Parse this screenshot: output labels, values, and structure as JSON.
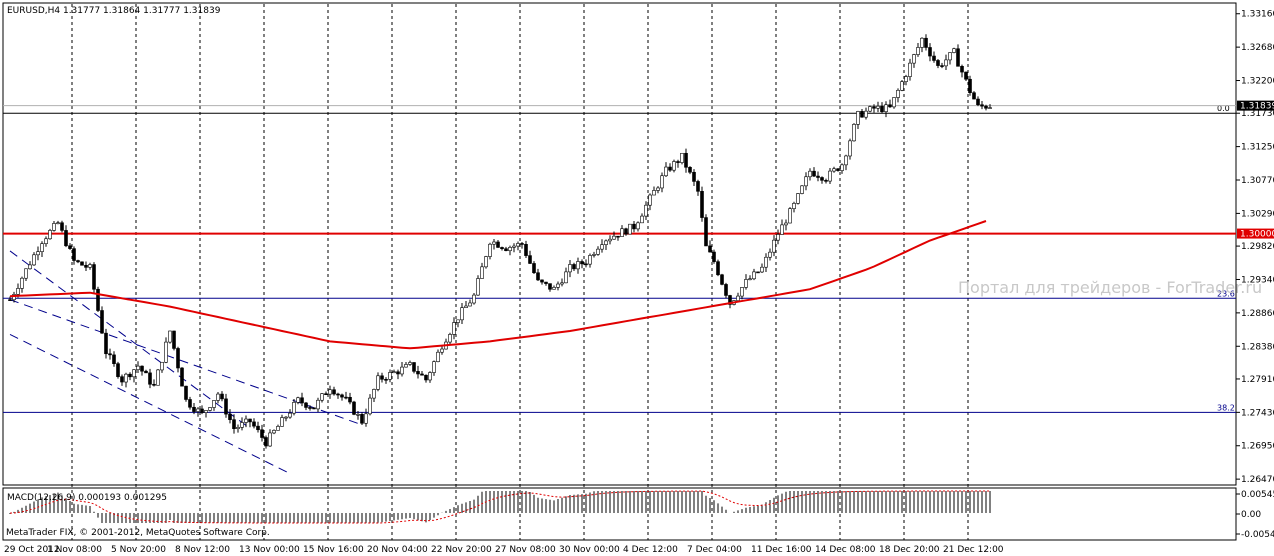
{
  "chart_data": {
    "type": "candlestick",
    "symbol_header": "EURUSD,H4  1.31777 1.31864 1.31777 1.31839",
    "price_axis": {
      "ticks": [
        "1.33160",
        "1.32680",
        "1.32200",
        "1.31730",
        "1.31250",
        "1.30770",
        "1.30290",
        "1.29820",
        "1.29340",
        "1.28860",
        "1.28380",
        "1.27910",
        "1.27430",
        "1.26950",
        "1.26470"
      ],
      "tick_values": [
        1.3316,
        1.3268,
        1.322,
        1.3173,
        1.3125,
        1.3077,
        1.3029,
        1.2982,
        1.2934,
        1.2886,
        1.2838,
        1.2791,
        1.2743,
        1.2695,
        1.2647
      ],
      "range": [
        1.264,
        1.333
      ]
    },
    "time_axis": {
      "labels": [
        "29 Oct 2012",
        "1 Nov 08:00",
        "5 Nov 20:00",
        "8 Nov 12:00",
        "13 Nov 00:00",
        "15 Nov 16:00",
        "20 Nov 04:00",
        "22 Nov 20:00",
        "27 Nov 08:00",
        "30 Nov 00:00",
        "4 Dec 12:00",
        "7 Dec 04:00",
        "11 Dec 16:00",
        "14 Dec 08:00",
        "18 Dec 20:00",
        "21 Dec 12:00"
      ],
      "bars_between_labels": 16,
      "total_bars": 245
    },
    "current_price": "1.31839",
    "current_price_value": 1.31839,
    "levels": [
      {
        "name": "1.30000",
        "value": 1.3,
        "color": "#e00000",
        "label": "1.30000",
        "kind": "support"
      },
      {
        "name": "fib-0.0",
        "value": 1.3173,
        "color": "#000000",
        "label": "0.0"
      },
      {
        "name": "fib-23.6",
        "value": 1.2907,
        "color": "#00008b",
        "label": "23.6"
      },
      {
        "name": "fib-38.2",
        "value": 1.2743,
        "color": "#00008b",
        "label": "38.2"
      }
    ],
    "price_path": [
      [
        0,
        1.2905
      ],
      [
        8,
        1.299
      ],
      [
        12,
        1.3015
      ],
      [
        16,
        1.296
      ],
      [
        20,
        1.295
      ],
      [
        24,
        1.283
      ],
      [
        28,
        1.279
      ],
      [
        32,
        1.281
      ],
      [
        36,
        1.278
      ],
      [
        40,
        1.286
      ],
      [
        44,
        1.276
      ],
      [
        48,
        1.274
      ],
      [
        52,
        1.277
      ],
      [
        56,
        1.272
      ],
      [
        60,
        1.273
      ],
      [
        64,
        1.27
      ],
      [
        68,
        1.273
      ],
      [
        72,
        1.276
      ],
      [
        76,
        1.275
      ],
      [
        80,
        1.278
      ],
      [
        84,
        1.276
      ],
      [
        88,
        1.273
      ],
      [
        92,
        1.279
      ],
      [
        96,
        1.28
      ],
      [
        100,
        1.281
      ],
      [
        104,
        1.279
      ],
      [
        108,
        1.284
      ],
      [
        112,
        1.288
      ],
      [
        116,
        1.291
      ],
      [
        120,
        1.299
      ],
      [
        124,
        1.298
      ],
      [
        128,
        1.2985
      ],
      [
        132,
        1.293
      ],
      [
        136,
        1.292
      ],
      [
        140,
        1.295
      ],
      [
        144,
        1.296
      ],
      [
        148,
        1.299
      ],
      [
        152,
        1.3
      ],
      [
        156,
        1.301
      ],
      [
        160,
        1.305
      ],
      [
        164,
        1.309
      ],
      [
        168,
        1.311
      ],
      [
        172,
        1.306
      ],
      [
        174,
        1.298
      ],
      [
        176,
        1.296
      ],
      [
        180,
        1.29
      ],
      [
        184,
        1.293
      ],
      [
        188,
        1.295
      ],
      [
        192,
        1.3
      ],
      [
        196,
        1.304
      ],
      [
        200,
        1.309
      ],
      [
        204,
        1.308
      ],
      [
        208,
        1.31
      ],
      [
        212,
        1.317
      ],
      [
        216,
        1.318
      ],
      [
        220,
        1.318
      ],
      [
        224,
        1.323
      ],
      [
        228,
        1.328
      ],
      [
        232,
        1.324
      ],
      [
        236,
        1.326
      ],
      [
        240,
        1.3205
      ],
      [
        242,
        1.3182
      ],
      [
        245,
        1.3184
      ]
    ],
    "moving_average": [
      [
        0,
        1.291
      ],
      [
        20,
        1.2915
      ],
      [
        40,
        1.2895
      ],
      [
        60,
        1.287
      ],
      [
        80,
        1.2845
      ],
      [
        100,
        1.2835
      ],
      [
        120,
        1.2845
      ],
      [
        140,
        1.286
      ],
      [
        160,
        1.288
      ],
      [
        180,
        1.29
      ],
      [
        200,
        1.292
      ],
      [
        215,
        1.295
      ],
      [
        230,
        1.299
      ],
      [
        245,
        1.302
      ]
    ],
    "channel_lines": [
      {
        "from": [
          0,
          1.2975
        ],
        "to": [
          60,
          1.272
        ]
      },
      {
        "from": [
          0,
          1.2905
        ],
        "to": [
          88,
          1.2725
        ]
      },
      {
        "from": [
          0,
          1.2855
        ],
        "to": [
          70,
          1.2655
        ]
      }
    ],
    "indicator": {
      "label": "MACD(12,26,9) 0.000193 0.001295",
      "ticks": [
        "0.00545",
        "0.00",
        "-0.00549"
      ],
      "tick_values": [
        0.00545,
        0.0,
        -0.00549
      ]
    },
    "footer_text": "MetaTrader FIX, © 2001-2012, MetaQuotes Software Corp.",
    "watermark": "Портал для трейдеров - ForTrader.ru",
    "colors": {
      "price_line": "#000000",
      "moving_average": "#e00000",
      "grid": "#000000",
      "macd_hist": "#000000",
      "macd_signal": "#e00000"
    }
  }
}
